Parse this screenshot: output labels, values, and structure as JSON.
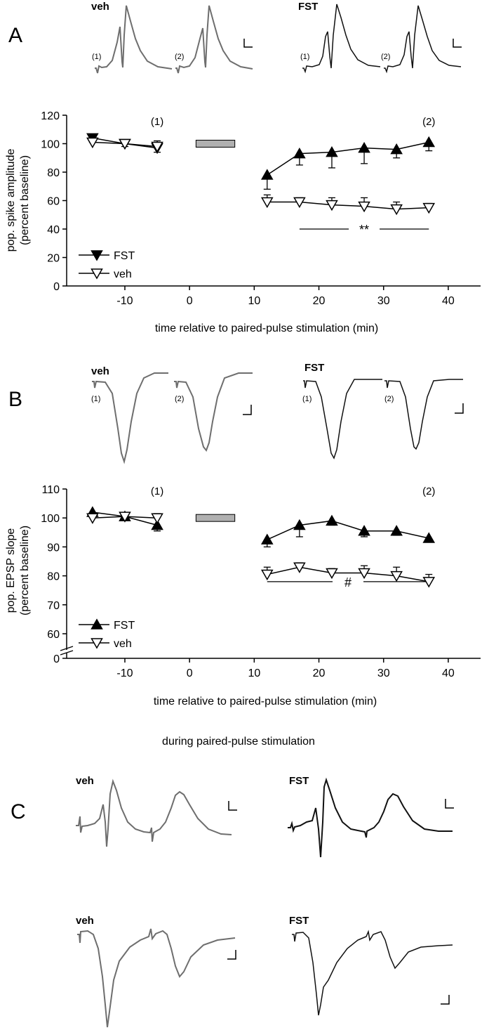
{
  "panels": {
    "A": {
      "letter": "A",
      "traces": [
        {
          "label": "veh",
          "nums": [
            "(1)",
            "(2)"
          ],
          "color": "#6e6e6e"
        },
        {
          "label": "FST",
          "nums": [
            "(1)",
            "(2)"
          ],
          "color": "#111111"
        }
      ]
    },
    "B": {
      "letter": "B",
      "traces": [
        {
          "label": "veh",
          "nums": [
            "(1)",
            "(2)"
          ],
          "color": "#6e6e6e"
        },
        {
          "label": "FST",
          "nums": [
            "(1)",
            "(2)"
          ],
          "color": "#111111"
        }
      ]
    },
    "C": {
      "letter": "C",
      "caption": "during paired-pulse stimulation",
      "traces_top": [
        {
          "label": "veh",
          "color": "#6e6e6e"
        },
        {
          "label": "FST",
          "color": "#111111"
        }
      ],
      "traces_bottom": [
        {
          "label": "veh",
          "color": "#6e6e6e"
        },
        {
          "label": "FST",
          "color": "#111111"
        }
      ]
    }
  },
  "chart_data": [
    {
      "type": "line",
      "panel": "A",
      "xlabel": "time relative to paired-pulse stimulation (min)",
      "ylabel_line1": "pop. spike amplitude",
      "ylabel_line2": "(percent baseline)",
      "xlim": [
        -19,
        45
      ],
      "ylim": [
        0,
        120
      ],
      "xticks": [
        -10,
        0,
        10,
        20,
        30,
        40
      ],
      "yticks": [
        0,
        20,
        40,
        60,
        80,
        100,
        120
      ],
      "legend_position": "bottom-left",
      "stim_bar": {
        "x": [
          1,
          7
        ],
        "y": 100
      },
      "annotations": [
        {
          "text": "(1)",
          "x": -5,
          "y": 113
        },
        {
          "text": "(2)",
          "x": 37,
          "y": 113
        }
      ],
      "significance": {
        "text": "**",
        "x_range": [
          17,
          37
        ],
        "y": 40
      },
      "series": [
        {
          "name": "FST",
          "marker": "triangle-down-filled",
          "x": [
            -15,
            -10,
            -5
          ],
          "y": [
            104,
            100,
            97
          ],
          "err": [
            3,
            2,
            3
          ]
        },
        {
          "name": "veh",
          "marker": "triangle-down-open",
          "x": [
            -15,
            -10,
            -5
          ],
          "y": [
            101,
            100,
            98
          ],
          "err": [
            3,
            2,
            4
          ]
        },
        {
          "name": "FST",
          "marker": "triangle-up-filled",
          "x": [
            12,
            17,
            22,
            27,
            32,
            37
          ],
          "y": [
            78,
            93,
            94,
            97,
            96,
            101
          ],
          "err": [
            10,
            8,
            11,
            11,
            6,
            6
          ]
        },
        {
          "name": "veh",
          "marker": "triangle-down-open",
          "x": [
            12,
            17,
            22,
            27,
            32,
            37
          ],
          "y": [
            59,
            59,
            57,
            56,
            54,
            55
          ],
          "err": [
            5,
            3,
            5,
            6,
            5,
            3
          ]
        }
      ],
      "legend": [
        {
          "name": "FST",
          "marker": "triangle-down-filled"
        },
        {
          "name": "veh",
          "marker": "triangle-down-open"
        }
      ]
    },
    {
      "type": "line",
      "panel": "B",
      "xlabel": "time relative to paired-pulse stimulation (min)",
      "ylabel_line1": "pop. EPSP slope",
      "ylabel_line2": "(percent baseline)",
      "xlim": [
        -19,
        45
      ],
      "ylim": [
        60,
        110
      ],
      "ytick_zero": "0",
      "axis_break": true,
      "xticks": [
        -10,
        0,
        10,
        20,
        30,
        40
      ],
      "yticks": [
        60,
        70,
        80,
        90,
        100,
        110
      ],
      "legend_position": "bottom-left",
      "stim_bar": {
        "x": [
          1,
          7
        ],
        "y": 100
      },
      "annotations": [
        {
          "text": "(1)",
          "x": -5,
          "y": 108
        },
        {
          "text": "(2)",
          "x": 37,
          "y": 108
        }
      ],
      "significance": {
        "text": "#",
        "x_range": [
          12,
          37
        ],
        "y": 78
      },
      "series": [
        {
          "name": "FST",
          "marker": "triangle-up-filled",
          "x": [
            -15,
            -10,
            -5
          ],
          "y": [
            102,
            100.5,
            97.5
          ],
          "err": [
            1.5,
            1,
            2
          ]
        },
        {
          "name": "veh",
          "marker": "triangle-down-open",
          "x": [
            -15,
            -10,
            -5
          ],
          "y": [
            100,
            100.5,
            100
          ],
          "err": [
            1.5,
            1,
            1.5
          ]
        },
        {
          "name": "FST",
          "marker": "triangle-up-filled",
          "x": [
            12,
            17,
            22,
            27,
            32,
            37
          ],
          "y": [
            92.5,
            97.5,
            99,
            95.5,
            95.5,
            93
          ],
          "err": [
            2.5,
            4,
            1.5,
            2,
            1.5,
            1.3
          ]
        },
        {
          "name": "veh",
          "marker": "triangle-down-open",
          "x": [
            12,
            17,
            22,
            27,
            32,
            37
          ],
          "y": [
            80.5,
            83,
            81,
            81,
            80,
            78
          ],
          "err": [
            2.5,
            1.5,
            1.5,
            2.5,
            3,
            2.5
          ]
        }
      ],
      "legend": [
        {
          "name": "FST",
          "marker": "triangle-up-filled"
        },
        {
          "name": "veh",
          "marker": "triangle-down-open"
        }
      ]
    }
  ]
}
